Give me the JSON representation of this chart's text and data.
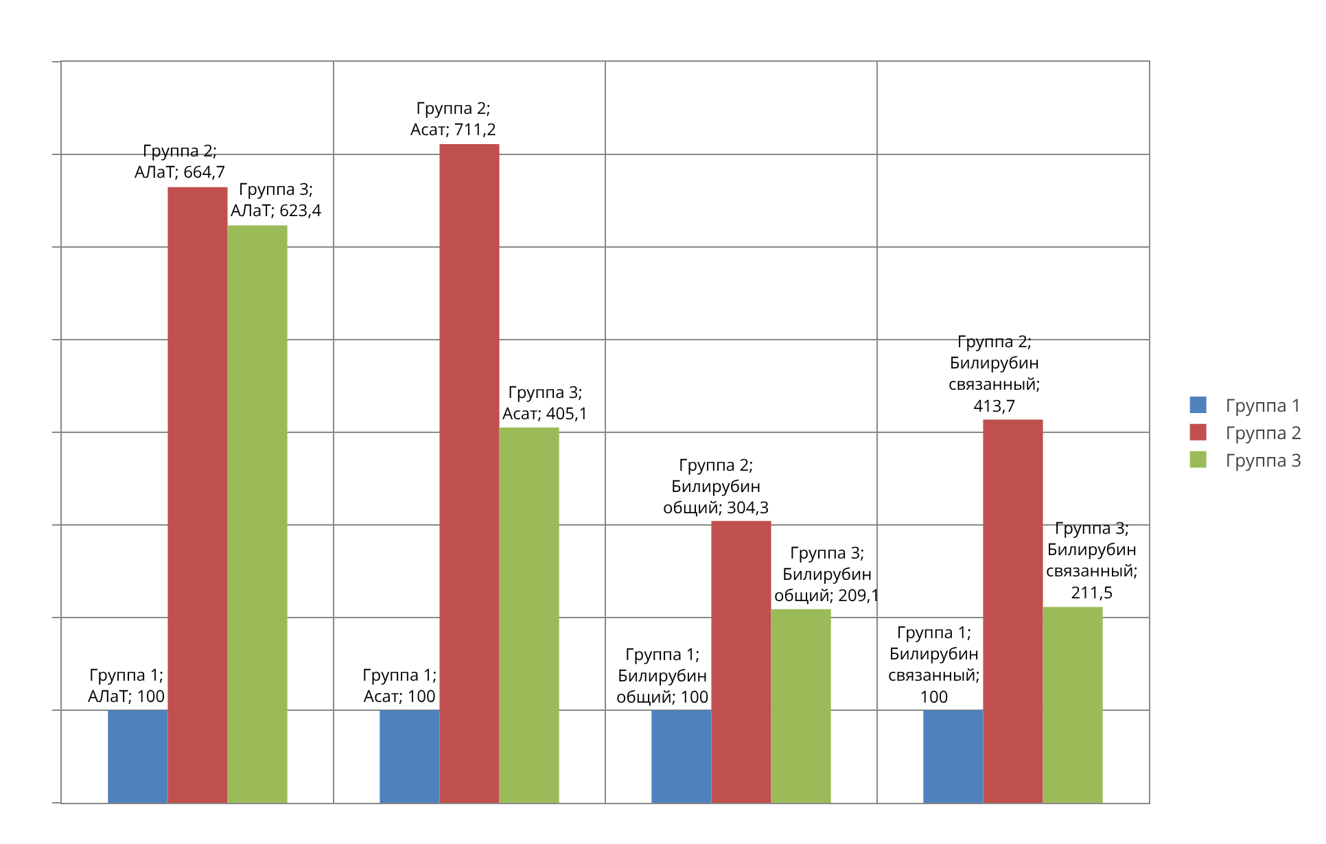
{
  "chart_data": {
    "type": "bar",
    "categories": [
      null,
      null,
      null,
      null
    ],
    "series": [
      {
        "name": "Группа 1",
        "color": "#4f81bd",
        "values": [
          100,
          100,
          100,
          100
        ],
        "value_labels": [
          "Группа 1; АЛаТ; 100",
          "Группа 1; Асат; 100",
          "Группа 1; Билирубин общий; 100",
          "Группа 1; Билирубин связанный; 100"
        ]
      },
      {
        "name": "Группа 2",
        "color": "#c0504d",
        "values": [
          664.7,
          711.2,
          304.3,
          413.7
        ],
        "value_labels": [
          "Группа 2; АЛаТ; 664,7",
          "Группа 2; Асат; 711,2",
          "Группа 2; Билирубин общий; 304,3",
          "Группа 2; Билирубин связанный; 413,7"
        ]
      },
      {
        "name": "Группа 3",
        "color": "#9bbb59",
        "values": [
          623.4,
          405.1,
          209.1,
          211.5
        ],
        "value_labels": [
          "Группа 3; АЛаТ; 623,4",
          "Группа 3; Асат; 405,1",
          "Группа 3; Билирубин общий; 209,1",
          "Группа 3; Билирубин связанный; 211,5"
        ]
      }
    ],
    "ylim": [
      0,
      800
    ],
    "yticks": [
      {
        "value": 0,
        "label": null
      },
      {
        "value": 100,
        "label": null
      },
      {
        "value": 200,
        "label": null
      },
      {
        "value": 300,
        "label": null
      },
      {
        "value": 400,
        "label": null
      },
      {
        "value": 500,
        "label": null
      },
      {
        "value": 600,
        "label": null
      },
      {
        "value": 700,
        "label": null
      },
      {
        "value": 800,
        "label": null
      }
    ],
    "grid": true,
    "legend": "right"
  }
}
